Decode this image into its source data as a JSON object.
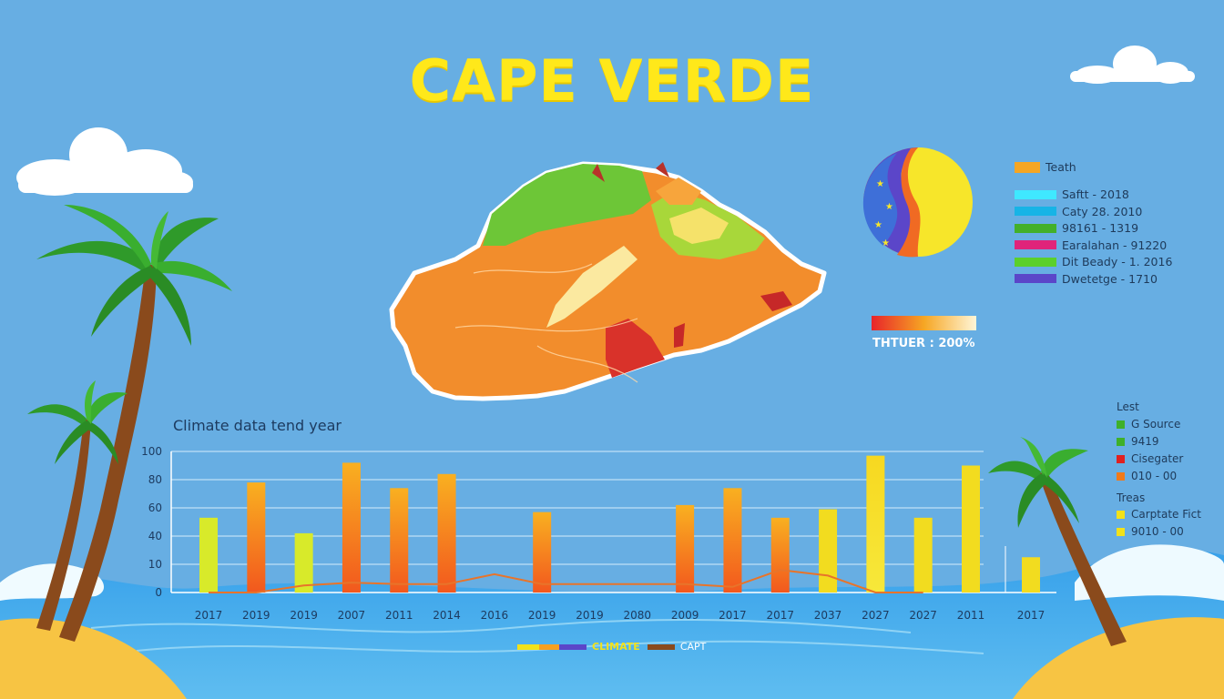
{
  "title": "CAPE VERDE",
  "legend": {
    "heading": "Teath",
    "heading_color": "#f5a623",
    "items": [
      {
        "label": "Saftt - 2018",
        "color": "#3fe8ff"
      },
      {
        "label": "Caty 28. 2010",
        "color": "#17b4e6"
      },
      {
        "label": "98161 - 1319",
        "color": "#43b02a"
      },
      {
        "label": "Earalahan - 91220",
        "color": "#e0247a"
      },
      {
        "label": "Dit Beady - 1. 2016",
        "color": "#5bd02b"
      },
      {
        "label": "Dwetetge - 1710",
        "color": "#5b46c9"
      }
    ]
  },
  "scale": {
    "label": "THTUER : 200%"
  },
  "side_legend": {
    "head1": "Lest",
    "group1": [
      {
        "label": "G Source",
        "color": "#3fb02a"
      },
      {
        "label": "9419",
        "color": "#3fb02a"
      },
      {
        "label": "Cisegater",
        "color": "#e02020"
      },
      {
        "label": "010 - 00",
        "color": "#f07a1a"
      }
    ],
    "head2": "Treas",
    "group2": [
      {
        "label": "Carptate Fict",
        "color": "#f2e21a"
      },
      {
        "label": "9010 - 00",
        "color": "#f2e21a"
      }
    ]
  },
  "bottom_legend": {
    "label1": "CLIMATE",
    "label2": "CAPT"
  },
  "chart_data": {
    "type": "bar",
    "title": "Climate data tend year",
    "xlabel": "",
    "ylabel": "",
    "y_ticks": [
      "100",
      "80",
      "60",
      "40",
      "10",
      "0"
    ],
    "categories": [
      "2017",
      "2019",
      "2019",
      "2007",
      "2011",
      "2014",
      "2016",
      "2019",
      "2019",
      "2080",
      "2009",
      "2017",
      "2017",
      "2037",
      "2027",
      "2027",
      "2011",
      "2017"
    ],
    "values": [
      53,
      78,
      42,
      92,
      74,
      84,
      null,
      57,
      null,
      null,
      62,
      74,
      53,
      59,
      97,
      53,
      90,
      25
    ],
    "bar_colors": [
      "#d8ea2a",
      "#f7a020",
      "#d8ea2a",
      "#f7a020",
      "#f7a020",
      "#f7a020",
      null,
      "#f7a020",
      null,
      null,
      "#f7a020",
      "#f7a020",
      "#f7a020",
      "#f2dc1f",
      "#f2c31f",
      "#f2dc1f",
      "#f2dc1f",
      "#f2dc1f"
    ],
    "line_values": [
      0,
      0,
      5,
      7,
      6,
      6,
      13,
      6,
      6,
      6,
      6,
      4,
      16,
      12,
      0,
      0,
      null,
      null
    ],
    "grid": true,
    "ylim": [
      0,
      100
    ]
  }
}
